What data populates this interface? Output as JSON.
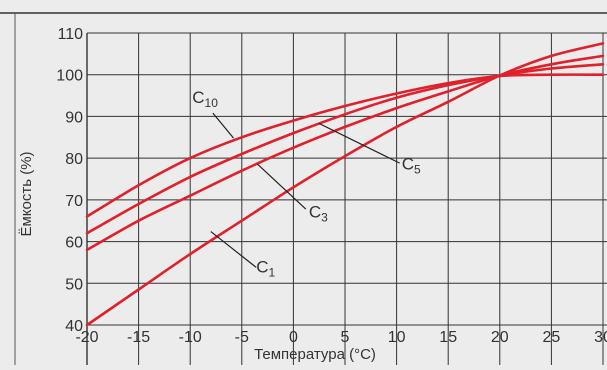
{
  "chart_data": {
    "type": "line",
    "title": "",
    "xlabel": "Температура (°C)",
    "ylabel": "Ёмкость (%)",
    "xlim": [
      -20,
      30
    ],
    "ylim": [
      40,
      110
    ],
    "x_ticks": [
      -20,
      -15,
      -10,
      -5,
      0,
      5,
      10,
      15,
      20,
      25,
      30
    ],
    "x_tick_labels": [
      "-20",
      "-15",
      "-10",
      "-5",
      "0",
      "5",
      "10",
      "15",
      "20",
      "25",
      "30"
    ],
    "y_ticks": [
      40,
      50,
      60,
      70,
      80,
      90,
      100,
      110
    ],
    "y_tick_labels": [
      "40",
      "50",
      "60",
      "70",
      "80",
      "90",
      "100",
      "110"
    ],
    "grid": true,
    "line_color": "#e0202a",
    "series": [
      {
        "name": "C10",
        "x": [
          -20,
          -15,
          -10,
          -5,
          0,
          5,
          10,
          15,
          20,
          25,
          30
        ],
        "y": [
          66,
          73.5,
          80,
          85,
          89,
          92.5,
          95.5,
          98,
          99.7,
          100,
          100
        ]
      },
      {
        "name": "C5",
        "x": [
          -20,
          -15,
          -10,
          -5,
          0,
          5,
          10,
          15,
          20,
          25,
          30
        ],
        "y": [
          62,
          69,
          75.5,
          81,
          86,
          90.5,
          94.5,
          97.5,
          99.8,
          101.5,
          102.5
        ]
      },
      {
        "name": "C3",
        "x": [
          -20,
          -15,
          -10,
          -5,
          0,
          5,
          10,
          15,
          20,
          25,
          30
        ],
        "y": [
          58,
          65,
          71,
          77,
          82.5,
          87.5,
          92,
          96,
          99.8,
          102.5,
          104.5
        ]
      },
      {
        "name": "C1",
        "x": [
          -20,
          -15,
          -10,
          -5,
          0,
          5,
          10,
          15,
          20,
          25,
          30
        ],
        "y": [
          40,
          48.5,
          57,
          65,
          73,
          80.5,
          87.5,
          93.5,
          99.8,
          104.5,
          107.5
        ]
      }
    ],
    "annotations": [
      {
        "series": "C10",
        "label_main": "C",
        "label_sub": "10",
        "text_at": [
          -9.8,
          93.2
        ],
        "line_from": [
          -7.8,
          90.8
        ],
        "line_to": [
          -5.8,
          84.8
        ]
      },
      {
        "series": "C5",
        "label_main": "C",
        "label_sub": "5",
        "text_at": [
          10.5,
          77.3
        ],
        "line_from": [
          10.3,
          78.8
        ],
        "line_to": [
          2.5,
          88.3
        ]
      },
      {
        "series": "C3",
        "label_main": "C",
        "label_sub": "3",
        "text_at": [
          1.5,
          65.8
        ],
        "line_from": [
          1.2,
          67.8
        ],
        "line_to": [
          -3.5,
          78.6
        ]
      },
      {
        "series": "C1",
        "label_main": "C",
        "label_sub": "1",
        "text_at": [
          -3.6,
          52.6
        ],
        "line_from": [
          -3.6,
          53.8
        ],
        "line_to": [
          -8,
          62.4
        ]
      }
    ]
  }
}
